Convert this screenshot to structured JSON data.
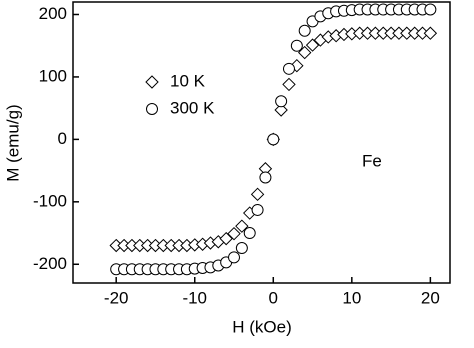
{
  "chart_data": {
    "type": "scatter",
    "x_label": "H (kOe)",
    "y_label": "M (emu/g)",
    "annotation": "Fe",
    "x": [
      -20,
      -19,
      -18,
      -17,
      -16,
      -15,
      -14,
      -13,
      -12,
      -11,
      -10,
      -9,
      -8,
      -7,
      -6,
      -5,
      -4,
      -3,
      -2,
      -1,
      0,
      1,
      2,
      3,
      4,
      5,
      6,
      7,
      8,
      9,
      10,
      11,
      12,
      13,
      14,
      15,
      16,
      17,
      18,
      19,
      20
    ],
    "series": [
      {
        "name": "10 K",
        "marker": "diamond",
        "color": "#000000",
        "values": [
          -170,
          -170,
          -170,
          -170,
          -170,
          -170,
          -170,
          -170,
          -170,
          -170,
          -169,
          -168,
          -166,
          -164,
          -159,
          -151,
          -139,
          -118,
          -88,
          -47,
          0,
          47,
          88,
          118,
          139,
          151,
          159,
          164,
          166,
          168,
          169,
          170,
          170,
          170,
          170,
          170,
          170,
          170,
          170,
          170,
          170
        ]
      },
      {
        "name": "300 K",
        "marker": "circle",
        "color": "#000000",
        "values": [
          -208,
          -208,
          -208,
          -208,
          -208,
          -208,
          -208,
          -208,
          -208,
          -208,
          -207,
          -206,
          -205,
          -202,
          -197,
          -189,
          -174,
          -150,
          -113,
          -61,
          0,
          61,
          113,
          150,
          174,
          189,
          197,
          202,
          205,
          206,
          207,
          208,
          208,
          208,
          208,
          208,
          208,
          208,
          208,
          208,
          208
        ]
      }
    ],
    "xlim": [
      -25.5,
      22.5
    ],
    "ylim": [
      -230,
      220
    ],
    "xticks": [
      -20,
      -10,
      0,
      10,
      20
    ],
    "yticks": [
      -200,
      -100,
      0,
      100,
      200
    ]
  }
}
